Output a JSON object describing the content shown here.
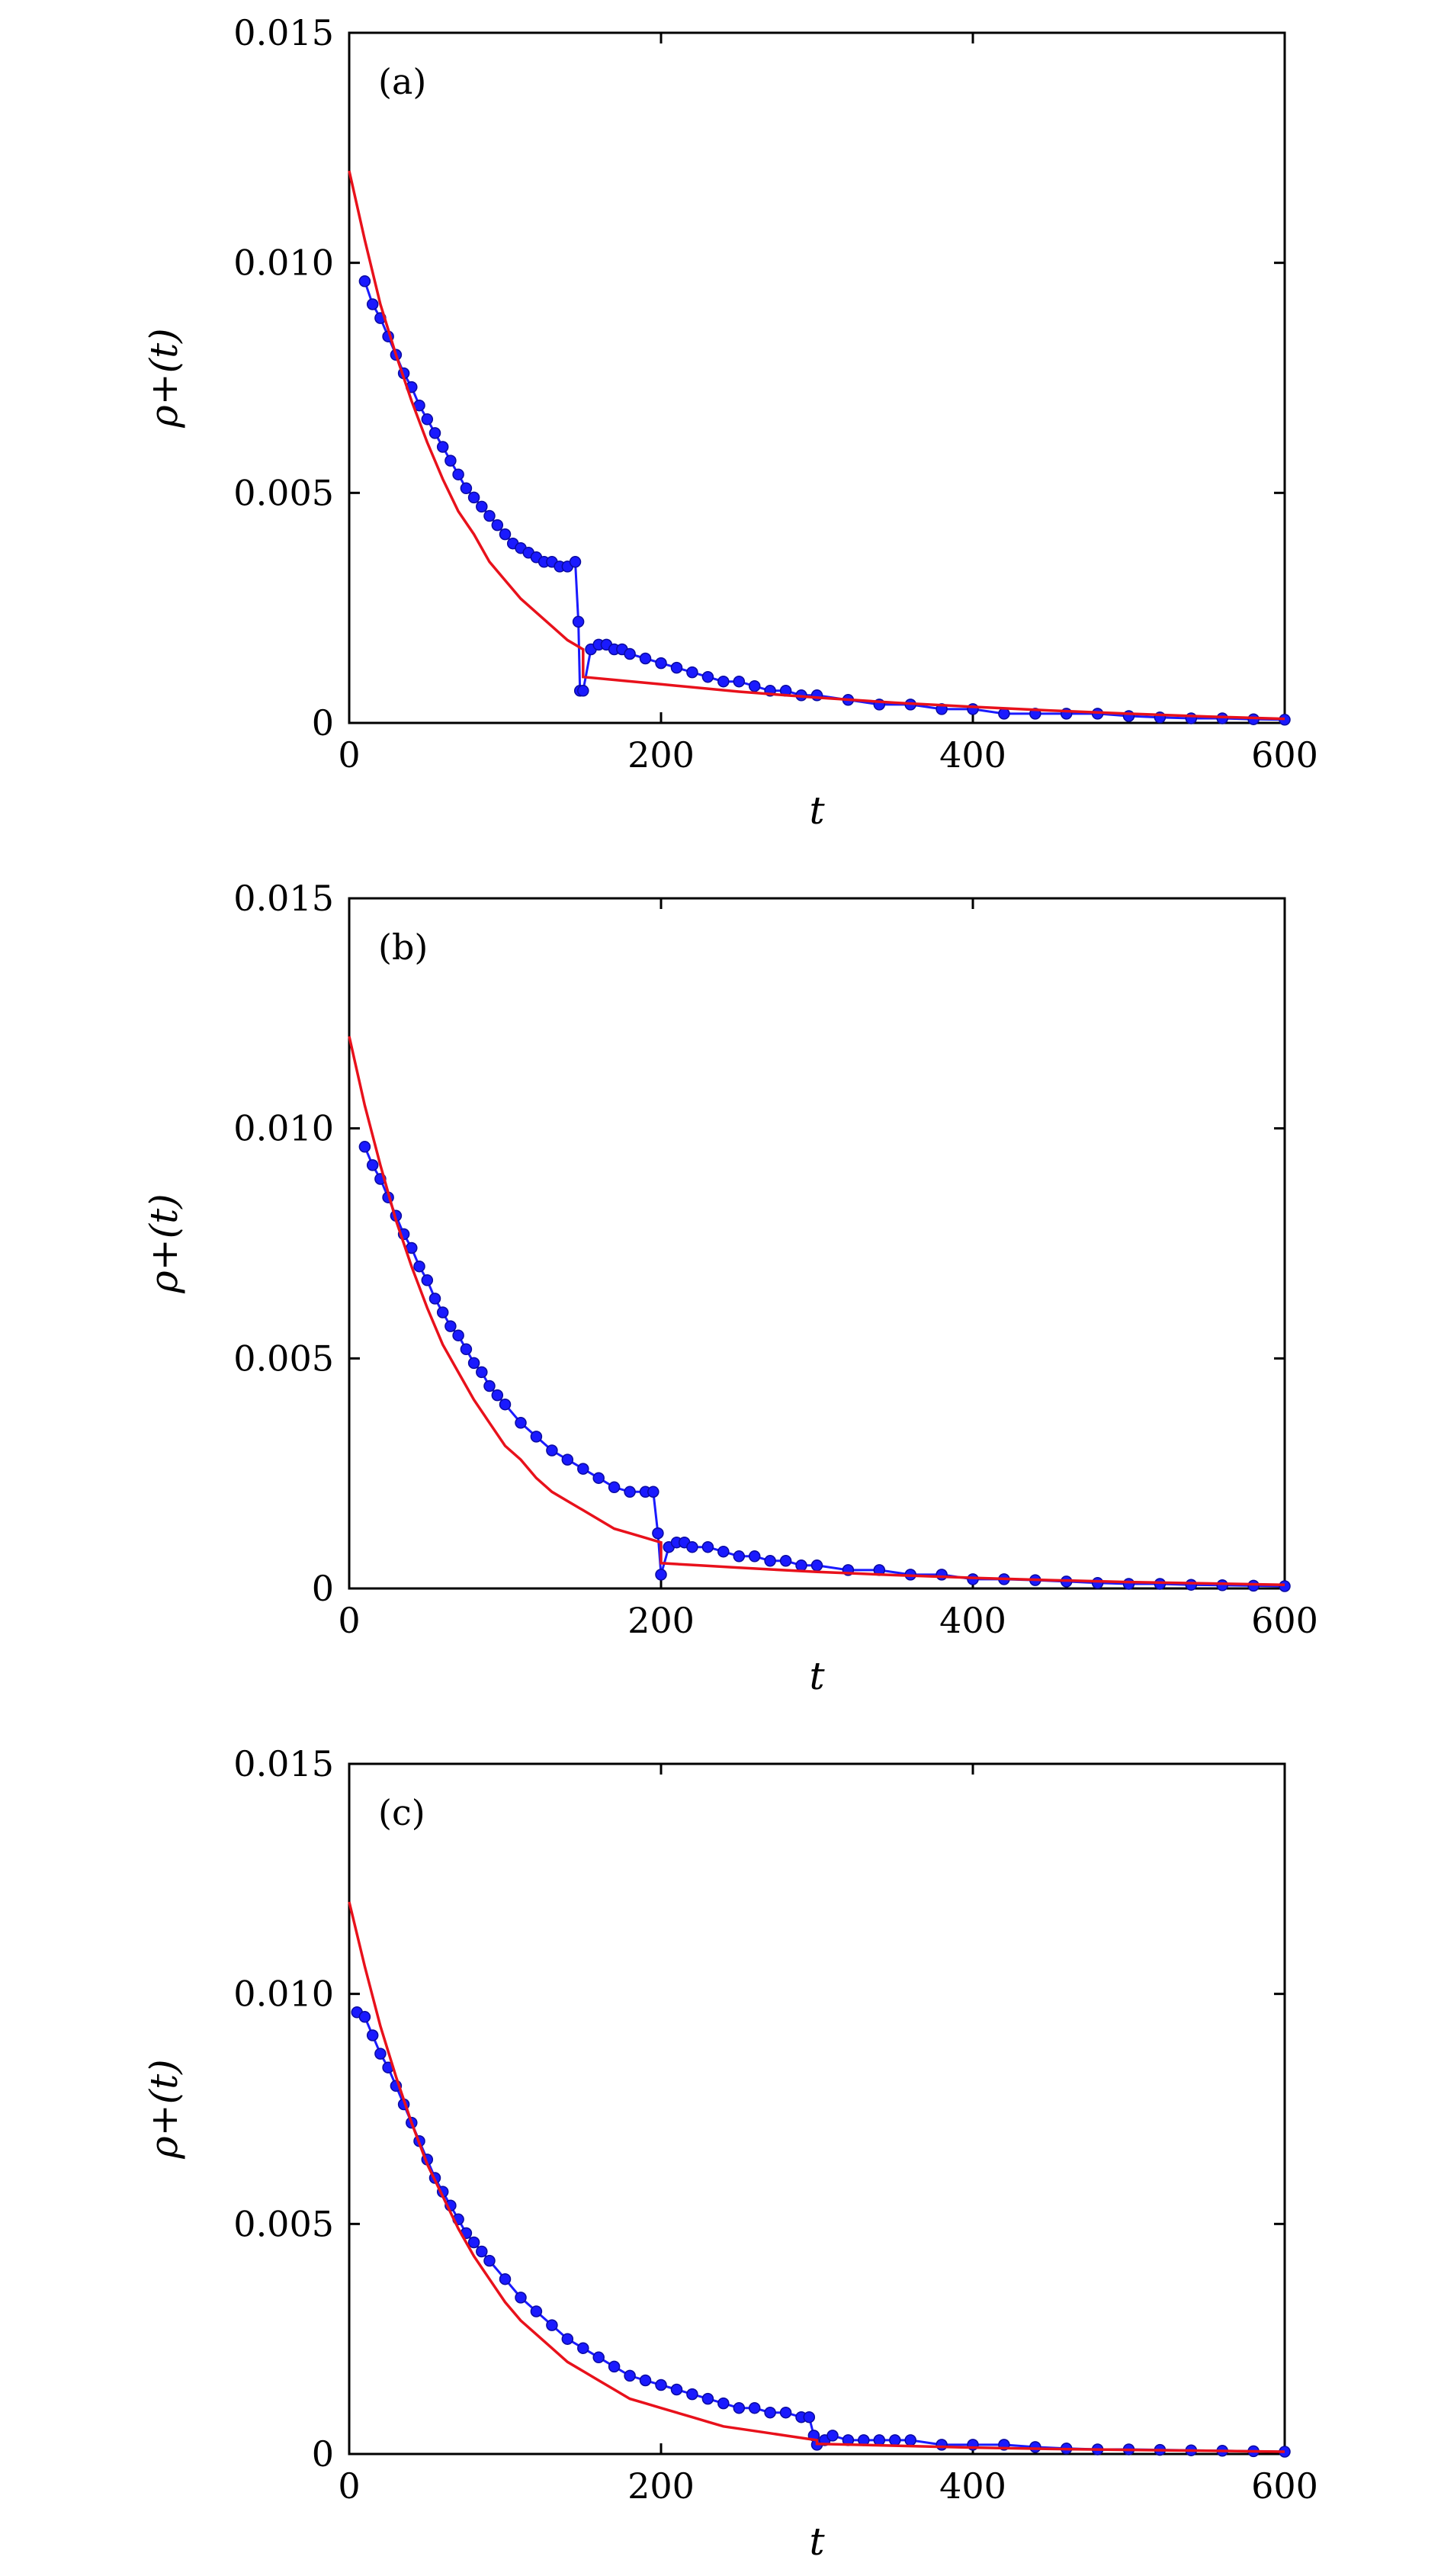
{
  "chart_data": [
    {
      "type": "scatter",
      "panel_label": "(a)",
      "xlabel": "t",
      "ylabel": "ρ+(t)",
      "xlim": [
        0,
        600
      ],
      "ylim": [
        0,
        0.015
      ],
      "x_ticks": [
        0,
        200,
        400,
        600
      ],
      "x_tick_labels": [
        "0",
        "200",
        "400",
        "600"
      ],
      "y_ticks": [
        0,
        0.005,
        0.01,
        0.015
      ],
      "y_tick_labels": [
        "0",
        "0.005",
        "0.010",
        "0.015"
      ],
      "switch_t": 150,
      "series": [
        {
          "kind": "markers-line",
          "color": "#1a1aff",
          "x": [
            10,
            15,
            20,
            25,
            30,
            35,
            40,
            45,
            50,
            55,
            60,
            65,
            70,
            75,
            80,
            85,
            90,
            95,
            100,
            105,
            110,
            115,
            120,
            125,
            130,
            135,
            140,
            145,
            147,
            148,
            150,
            155,
            160,
            165,
            170,
            175,
            180,
            190,
            200,
            210,
            220,
            230,
            240,
            250,
            260,
            270,
            280,
            290,
            300,
            320,
            340,
            360,
            380,
            400,
            420,
            440,
            460,
            480,
            500,
            520,
            540,
            560,
            580,
            600
          ],
          "y": [
            0.0096,
            0.0091,
            0.0088,
            0.0084,
            0.008,
            0.0076,
            0.0073,
            0.0069,
            0.0066,
            0.0063,
            0.006,
            0.0057,
            0.0054,
            0.0051,
            0.0049,
            0.0047,
            0.0045,
            0.0043,
            0.0041,
            0.0039,
            0.0038,
            0.0037,
            0.0036,
            0.0035,
            0.0035,
            0.0034,
            0.0034,
            0.0035,
            0.0022,
            0.0007,
            0.0007,
            0.0016,
            0.0017,
            0.0017,
            0.0016,
            0.0016,
            0.0015,
            0.0014,
            0.0013,
            0.0012,
            0.0011,
            0.001,
            0.0009,
            0.0009,
            0.0008,
            0.0007,
            0.0007,
            0.0006,
            0.0006,
            0.0005,
            0.0004,
            0.0004,
            0.0003,
            0.0003,
            0.0002,
            0.0002,
            0.0002,
            0.0002,
            0.00015,
            0.00012,
            0.0001,
            0.0001,
            8e-05,
            7e-05
          ]
        },
        {
          "kind": "line",
          "color": "#e8111b",
          "x": [
            0,
            10,
            20,
            30,
            40,
            50,
            60,
            70,
            80,
            90,
            100,
            110,
            120,
            130,
            140,
            150,
            150,
            175,
            200,
            250,
            300,
            350,
            400,
            450,
            500,
            550,
            600
          ],
          "y": [
            0.012,
            0.0105,
            0.0091,
            0.008,
            0.007,
            0.0061,
            0.0053,
            0.0046,
            0.0041,
            0.0035,
            0.0031,
            0.0027,
            0.0024,
            0.0021,
            0.0018,
            0.0016,
            0.001,
            0.00092,
            0.00084,
            0.00068,
            0.00055,
            0.00044,
            0.00035,
            0.00027,
            0.0002,
            0.00014,
            9e-05
          ]
        }
      ]
    },
    {
      "type": "scatter",
      "panel_label": "(b)",
      "xlabel": "t",
      "ylabel": "ρ+(t)",
      "xlim": [
        0,
        600
      ],
      "ylim": [
        0,
        0.015
      ],
      "x_ticks": [
        0,
        200,
        400,
        600
      ],
      "x_tick_labels": [
        "0",
        "200",
        "400",
        "600"
      ],
      "y_ticks": [
        0,
        0.005,
        0.01,
        0.015
      ],
      "y_tick_labels": [
        "0",
        "0.005",
        "0.010",
        "0.015"
      ],
      "switch_t": 200,
      "series": [
        {
          "kind": "markers-line",
          "color": "#1a1aff",
          "x": [
            10,
            15,
            20,
            25,
            30,
            35,
            40,
            45,
            50,
            55,
            60,
            65,
            70,
            75,
            80,
            85,
            90,
            95,
            100,
            110,
            120,
            130,
            140,
            150,
            160,
            170,
            180,
            190,
            195,
            198,
            200,
            205,
            210,
            215,
            220,
            230,
            240,
            250,
            260,
            270,
            280,
            290,
            300,
            320,
            340,
            360,
            380,
            400,
            420,
            440,
            460,
            480,
            500,
            520,
            540,
            560,
            580,
            600
          ],
          "y": [
            0.0096,
            0.0092,
            0.0089,
            0.0085,
            0.0081,
            0.0077,
            0.0074,
            0.007,
            0.0067,
            0.0063,
            0.006,
            0.0057,
            0.0055,
            0.0052,
            0.0049,
            0.0047,
            0.0044,
            0.0042,
            0.004,
            0.0036,
            0.0033,
            0.003,
            0.0028,
            0.0026,
            0.0024,
            0.0022,
            0.0021,
            0.0021,
            0.0021,
            0.0012,
            0.0003,
            0.0009,
            0.001,
            0.001,
            0.0009,
            0.0009,
            0.0008,
            0.0007,
            0.0007,
            0.0006,
            0.0006,
            0.0005,
            0.0005,
            0.0004,
            0.0004,
            0.0003,
            0.0003,
            0.0002,
            0.0002,
            0.00018,
            0.00015,
            0.00012,
            0.0001,
            0.0001,
            8e-05,
            7e-05,
            6e-05,
            5e-05
          ]
        },
        {
          "kind": "line",
          "color": "#e8111b",
          "x": [
            0,
            10,
            20,
            30,
            40,
            50,
            60,
            70,
            80,
            90,
            100,
            110,
            120,
            130,
            140,
            150,
            160,
            170,
            180,
            190,
            200,
            200,
            225,
            250,
            300,
            350,
            400,
            450,
            500,
            550,
            600
          ],
          "y": [
            0.012,
            0.0105,
            0.0092,
            0.008,
            0.007,
            0.0061,
            0.0053,
            0.0047,
            0.0041,
            0.0036,
            0.0031,
            0.0028,
            0.0024,
            0.0021,
            0.0019,
            0.0017,
            0.0015,
            0.0013,
            0.0012,
            0.0011,
            0.001,
            0.00055,
            0.0005,
            0.00045,
            0.00036,
            0.00029,
            0.00023,
            0.00018,
            0.00014,
            0.00011,
            8e-05
          ]
        }
      ]
    },
    {
      "type": "scatter",
      "panel_label": "(c)",
      "xlabel": "t",
      "ylabel": "ρ+(t)",
      "xlim": [
        0,
        600
      ],
      "ylim": [
        0,
        0.015
      ],
      "x_ticks": [
        0,
        200,
        400,
        600
      ],
      "x_tick_labels": [
        "0",
        "200",
        "400",
        "600"
      ],
      "y_ticks": [
        0,
        0.005,
        0.01,
        0.015
      ],
      "y_tick_labels": [
        "0",
        "0.005",
        "0.010",
        "0.015"
      ],
      "switch_t": 300,
      "series": [
        {
          "kind": "markers-line",
          "color": "#1a1aff",
          "x": [
            5,
            10,
            15,
            20,
            25,
            30,
            35,
            40,
            45,
            50,
            55,
            60,
            65,
            70,
            75,
            80,
            85,
            90,
            100,
            110,
            120,
            130,
            140,
            150,
            160,
            170,
            180,
            190,
            200,
            210,
            220,
            230,
            240,
            250,
            260,
            270,
            280,
            290,
            295,
            298,
            300,
            305,
            310,
            320,
            330,
            340,
            350,
            360,
            380,
            400,
            420,
            440,
            460,
            480,
            500,
            520,
            540,
            560,
            580,
            600
          ],
          "y": [
            0.0096,
            0.0095,
            0.0091,
            0.0087,
            0.0084,
            0.008,
            0.0076,
            0.0072,
            0.0068,
            0.0064,
            0.006,
            0.0057,
            0.0054,
            0.0051,
            0.0048,
            0.0046,
            0.0044,
            0.0042,
            0.0038,
            0.0034,
            0.0031,
            0.0028,
            0.0025,
            0.0023,
            0.0021,
            0.0019,
            0.0017,
            0.0016,
            0.0015,
            0.0014,
            0.0013,
            0.0012,
            0.0011,
            0.001,
            0.001,
            0.0009,
            0.0009,
            0.0008,
            0.0008,
            0.0004,
            0.0002,
            0.0003,
            0.0004,
            0.0003,
            0.0003,
            0.0003,
            0.0003,
            0.0003,
            0.0002,
            0.0002,
            0.0002,
            0.00015,
            0.00012,
            0.0001,
            0.0001,
            9e-05,
            8e-05,
            7e-05,
            6e-05,
            5e-05
          ]
        },
        {
          "kind": "line",
          "color": "#e8111b",
          "x": [
            0,
            10,
            20,
            30,
            40,
            50,
            60,
            70,
            80,
            90,
            100,
            110,
            120,
            130,
            140,
            150,
            160,
            170,
            180,
            190,
            200,
            210,
            220,
            230,
            240,
            250,
            260,
            270,
            280,
            290,
            300,
            300,
            350,
            400,
            450,
            500,
            550,
            600
          ],
          "y": [
            0.012,
            0.0106,
            0.0093,
            0.0082,
            0.0072,
            0.0063,
            0.0056,
            0.0049,
            0.0043,
            0.0038,
            0.0033,
            0.0029,
            0.0026,
            0.0023,
            0.002,
            0.0018,
            0.0016,
            0.0014,
            0.0012,
            0.0011,
            0.001,
            0.0009,
            0.0008,
            0.0007,
            0.0006,
            0.00055,
            0.0005,
            0.00045,
            0.0004,
            0.00035,
            0.0003,
            0.00022,
            0.00018,
            0.00014,
            0.00011,
            9e-05,
            7e-05,
            5e-05
          ]
        }
      ]
    }
  ]
}
